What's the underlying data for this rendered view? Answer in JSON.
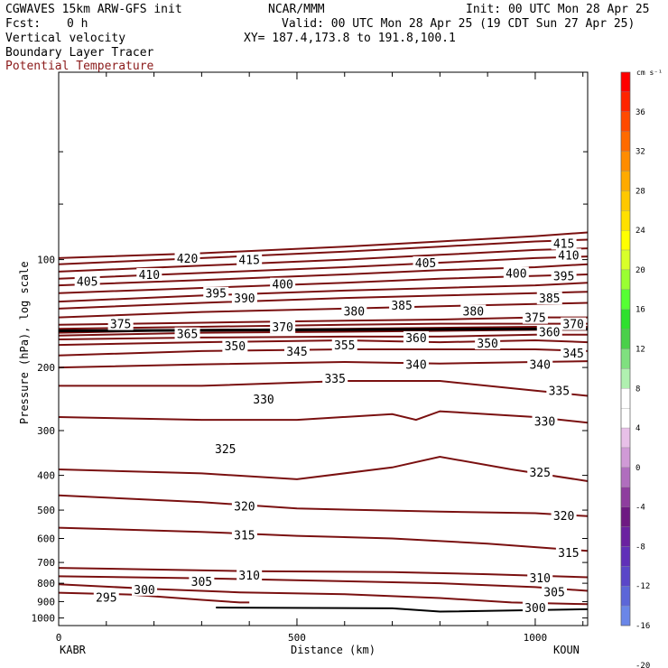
{
  "header": {
    "model": "CGWAVES 15km ARW-GFS init",
    "org": "NCAR/MMM",
    "init": "Init: 00 UTC Mon 28 Apr 25",
    "fcst_label": "Fcst:",
    "fcst_value": "0 h",
    "valid": "Valid: 00 UTC Mon 28 Apr 25 (19 CDT Sun 27 Apr 25)",
    "field1": "Vertical velocity",
    "field2": "Boundary Layer Tracer",
    "field3": "Potential Temperature",
    "xy": "XY= 187.4,173.8 to 191.8,100.1"
  },
  "colors": {
    "contour": "#7a1010",
    "field3_text": "#8b1a1a"
  },
  "chart_data": {
    "type": "contour",
    "xlabel": "Distance (km)",
    "ylabel": "Pressure (hPa), log scale",
    "xlim": [
      0,
      1110
    ],
    "ylim": [
      1050,
      30
    ],
    "x_ticks": [
      "0",
      "500",
      "1000"
    ],
    "y_ticks": [
      "100",
      "200",
      "300",
      "400",
      "500",
      "600",
      "700",
      "800",
      "900",
      "1000"
    ],
    "left_endpoint": "KABR",
    "right_endpoint": "KOUN",
    "colorbar": {
      "unit": "cm s⁻¹",
      "labels": [
        "36",
        "32",
        "28",
        "24",
        "20",
        "16",
        "12",
        "8",
        "4",
        "0",
        "-4",
        "-8",
        "-12",
        "-16",
        "-20"
      ],
      "colors": [
        "#ff0000",
        "#ff2400",
        "#ff4a00",
        "#ff6a00",
        "#ff8c00",
        "#ffaa00",
        "#ffc800",
        "#ffe000",
        "#ffff00",
        "#d8ff2a",
        "#9aff32",
        "#55ff33",
        "#2ee02e",
        "#4ad04a",
        "#7fe07f",
        "#b0f0b0",
        "#ffffff",
        "#ffffff",
        "#e8c0e8",
        "#d09ad6",
        "#b06ebe",
        "#8e3e9e",
        "#6e1a82",
        "#6a22a0",
        "#6030b8",
        "#5a46c8",
        "#5c66d8",
        "#6a86e8"
      ]
    },
    "contours": [
      {
        "label": "295",
        "points": [
          [
            0,
            850
          ],
          [
            150,
            860
          ],
          [
            300,
            890
          ],
          [
            380,
            905
          ],
          [
            400,
            905
          ]
        ]
      },
      {
        "label": "300",
        "points": [
          [
            0,
            805
          ],
          [
            200,
            830
          ],
          [
            380,
            848
          ],
          [
            600,
            858
          ],
          [
            800,
            880
          ],
          [
            950,
            905
          ],
          [
            1110,
            915
          ]
        ]
      },
      {
        "label": "305",
        "points": [
          [
            0,
            765
          ],
          [
            300,
            775
          ],
          [
            600,
            790
          ],
          [
            800,
            800
          ],
          [
            1000,
            820
          ],
          [
            1110,
            840
          ]
        ]
      },
      {
        "label": "310",
        "points": [
          [
            0,
            725
          ],
          [
            400,
            740
          ],
          [
            700,
            745
          ],
          [
            900,
            755
          ],
          [
            1110,
            770
          ]
        ]
      },
      {
        "label": "315",
        "points": [
          [
            0,
            560
          ],
          [
            300,
            575
          ],
          [
            500,
            590
          ],
          [
            700,
            600
          ],
          [
            900,
            620
          ],
          [
            1110,
            650
          ]
        ]
      },
      {
        "label": "320",
        "points": [
          [
            0,
            455
          ],
          [
            300,
            475
          ],
          [
            500,
            495
          ],
          [
            800,
            505
          ],
          [
            1000,
            510
          ],
          [
            1110,
            520
          ]
        ]
      },
      {
        "label": "325",
        "points": [
          [
            0,
            385
          ],
          [
            300,
            395
          ],
          [
            500,
            410
          ],
          [
            700,
            380
          ],
          [
            800,
            355
          ],
          [
            950,
            385
          ],
          [
            1110,
            415
          ]
        ]
      },
      {
        "label": "330",
        "points": [
          [
            0,
            275
          ],
          [
            300,
            280
          ],
          [
            500,
            280
          ],
          [
            700,
            270
          ],
          [
            750,
            280
          ],
          [
            800,
            265
          ],
          [
            1000,
            275
          ],
          [
            1110,
            285
          ]
        ]
      },
      {
        "label": "335",
        "points": [
          [
            0,
            225
          ],
          [
            300,
            225
          ],
          [
            600,
            218
          ],
          [
            800,
            218
          ],
          [
            1000,
            232
          ],
          [
            1110,
            240
          ]
        ]
      },
      {
        "label": "340",
        "points": [
          [
            0,
            200
          ],
          [
            300,
            196
          ],
          [
            600,
            193
          ],
          [
            800,
            195
          ],
          [
            1000,
            193
          ],
          [
            1110,
            192
          ]
        ]
      },
      {
        "label": "345",
        "points": [
          [
            0,
            185
          ],
          [
            300,
            180
          ],
          [
            600,
            178
          ],
          [
            800,
            178
          ],
          [
            1000,
            178
          ],
          [
            1110,
            180
          ]
        ]
      },
      {
        "label": "350",
        "points": [
          [
            0,
            173
          ],
          [
            300,
            170
          ],
          [
            600,
            168
          ],
          [
            800,
            170
          ],
          [
            1000,
            168
          ],
          [
            1110,
            170
          ]
        ]
      },
      {
        "label": "355",
        "points": [
          [
            0,
            167
          ],
          [
            300,
            165
          ],
          [
            600,
            164
          ],
          [
            800,
            164
          ],
          [
            1000,
            162
          ],
          [
            1110,
            162
          ]
        ]
      },
      {
        "label": "360",
        "points": [
          [
            0,
            163
          ],
          [
            300,
            160
          ],
          [
            600,
            159
          ],
          [
            800,
            158
          ],
          [
            1000,
            157
          ],
          [
            1110,
            157
          ]
        ]
      },
      {
        "label": "365",
        "points": [
          [
            0,
            160
          ],
          [
            300,
            157
          ],
          [
            600,
            156
          ],
          [
            800,
            155
          ],
          [
            1000,
            154
          ],
          [
            1110,
            154
          ]
        ]
      },
      {
        "label": "370",
        "points": [
          [
            0,
            156
          ],
          [
            300,
            154
          ],
          [
            600,
            152
          ],
          [
            800,
            151
          ],
          [
            1000,
            151
          ],
          [
            1110,
            151
          ]
        ]
      },
      {
        "label": "375",
        "points": [
          [
            0,
            152
          ],
          [
            300,
            150
          ],
          [
            600,
            148
          ],
          [
            800,
            147
          ],
          [
            1000,
            145
          ],
          [
            1110,
            145
          ]
        ]
      },
      {
        "label": "380",
        "points": [
          [
            0,
            145
          ],
          [
            300,
            140
          ],
          [
            600,
            137
          ],
          [
            800,
            135
          ],
          [
            1000,
            133
          ],
          [
            1110,
            132
          ]
        ]
      },
      {
        "label": "385",
        "points": [
          [
            0,
            137
          ],
          [
            300,
            132
          ],
          [
            600,
            128
          ],
          [
            800,
            126
          ],
          [
            1000,
            124
          ],
          [
            1110,
            123
          ]
        ]
      },
      {
        "label": "390",
        "points": [
          [
            0,
            131
          ],
          [
            300,
            126
          ],
          [
            600,
            122
          ],
          [
            800,
            120
          ],
          [
            1000,
            118
          ],
          [
            1110,
            116
          ]
        ]
      },
      {
        "label": "395",
        "points": [
          [
            0,
            124
          ],
          [
            300,
            120
          ],
          [
            600,
            116
          ],
          [
            800,
            113
          ],
          [
            1000,
            111
          ],
          [
            1110,
            110
          ]
        ]
      },
      {
        "label": "400",
        "points": [
          [
            0,
            118
          ],
          [
            300,
            114
          ],
          [
            600,
            110
          ],
          [
            800,
            107
          ],
          [
            1000,
            105
          ],
          [
            1110,
            103
          ]
        ]
      },
      {
        "label": "405",
        "points": [
          [
            0,
            113
          ],
          [
            300,
            109
          ],
          [
            600,
            105
          ],
          [
            800,
            102
          ],
          [
            1000,
            99
          ],
          [
            1110,
            98
          ]
        ]
      },
      {
        "label": "410",
        "points": [
          [
            0,
            108
          ],
          [
            300,
            104
          ],
          [
            600,
            100
          ],
          [
            800,
            97
          ],
          [
            1000,
            94
          ],
          [
            1110,
            93
          ]
        ]
      },
      {
        "label": "415",
        "points": [
          [
            0,
            103
          ],
          [
            300,
            99
          ],
          [
            600,
            95
          ],
          [
            800,
            92
          ],
          [
            1000,
            89
          ],
          [
            1110,
            88
          ]
        ]
      },
      {
        "label": "420",
        "points": [
          [
            0,
            99
          ],
          [
            300,
            96
          ],
          [
            600,
            92
          ],
          [
            800,
            89
          ],
          [
            1000,
            86
          ],
          [
            1110,
            84
          ]
        ]
      }
    ],
    "contour_labels": [
      {
        "text": "295",
        "x": 100,
        "p": 875
      },
      {
        "text": "300",
        "x": 180,
        "p": 832
      },
      {
        "text": "305",
        "x": 300,
        "p": 790
      },
      {
        "text": "310",
        "x": 400,
        "p": 758
      },
      {
        "text": "320",
        "x": 390,
        "p": 487
      },
      {
        "text": "315",
        "x": 390,
        "p": 587
      },
      {
        "text": "325",
        "x": 350,
        "p": 337
      },
      {
        "text": "330",
        "x": 430,
        "p": 245
      },
      {
        "text": "335",
        "x": 580,
        "p": 214
      },
      {
        "text": "340",
        "x": 750,
        "p": 196
      },
      {
        "text": "345",
        "x": 500,
        "p": 180
      },
      {
        "text": "350",
        "x": 370,
        "p": 174
      },
      {
        "text": "355",
        "x": 600,
        "p": 173
      },
      {
        "text": "360",
        "x": 750,
        "p": 165
      },
      {
        "text": "365",
        "x": 270,
        "p": 161
      },
      {
        "text": "375",
        "x": 130,
        "p": 151
      },
      {
        "text": "370",
        "x": 470,
        "p": 154
      },
      {
        "text": "380",
        "x": 620,
        "p": 139
      },
      {
        "text": "385",
        "x": 720,
        "p": 134
      },
      {
        "text": "380",
        "x": 870,
        "p": 139
      },
      {
        "text": "375",
        "x": 1000,
        "p": 145
      },
      {
        "text": "390",
        "x": 390,
        "p": 128
      },
      {
        "text": "395",
        "x": 330,
        "p": 124
      },
      {
        "text": "400",
        "x": 470,
        "p": 117
      },
      {
        "text": "405",
        "x": 60,
        "p": 115
      },
      {
        "text": "410",
        "x": 190,
        "p": 110
      },
      {
        "text": "420",
        "x": 270,
        "p": 99
      },
      {
        "text": "415",
        "x": 400,
        "p": 100
      },
      {
        "text": "405",
        "x": 770,
        "p": 102
      },
      {
        "text": "400",
        "x": 960,
        "p": 109
      },
      {
        "text": "410",
        "x": 1070,
        "p": 97
      },
      {
        "text": "385",
        "x": 1030,
        "p": 128
      },
      {
        "text": "395",
        "x": 1060,
        "p": 111
      },
      {
        "text": "415",
        "x": 1060,
        "p": 90
      },
      {
        "text": "360",
        "x": 1030,
        "p": 159
      },
      {
        "text": "370",
        "x": 1080,
        "p": 151
      },
      {
        "text": "340",
        "x": 1010,
        "p": 196
      },
      {
        "text": "345",
        "x": 1080,
        "p": 182
      },
      {
        "text": "350",
        "x": 900,
        "p": 171
      },
      {
        "text": "335",
        "x": 1050,
        "p": 232
      },
      {
        "text": "330",
        "x": 1020,
        "p": 282
      },
      {
        "text": "325",
        "x": 1010,
        "p": 392
      },
      {
        "text": "320",
        "x": 1060,
        "p": 518
      },
      {
        "text": "315",
        "x": 1070,
        "p": 657
      },
      {
        "text": "310",
        "x": 1010,
        "p": 772
      },
      {
        "text": "305",
        "x": 1040,
        "p": 845
      },
      {
        "text": "300",
        "x": 1000,
        "p": 935
      }
    ]
  }
}
